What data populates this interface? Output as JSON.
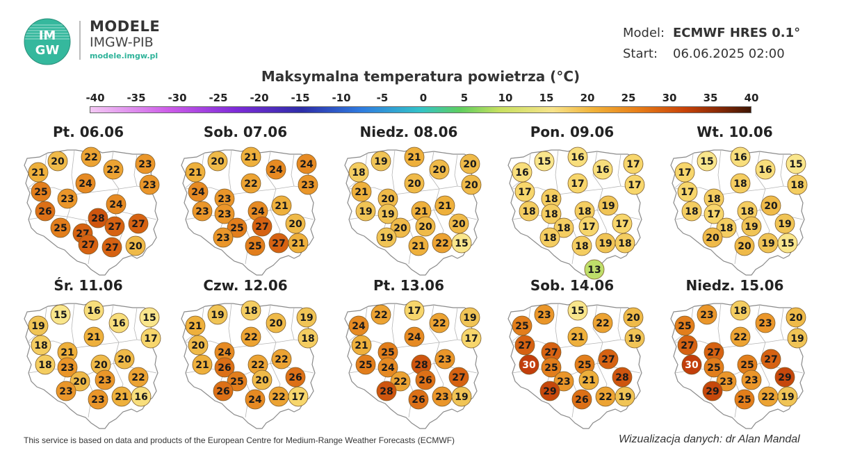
{
  "header": {
    "logo_text": "IMGW",
    "brand_name": "MODELE",
    "brand_sub": "IMGW-PIB",
    "brand_url": "modele.imgw.pl",
    "model_label": "Model:",
    "model_value": "ECMWF HRES 0.1°",
    "start_label": "Start:",
    "start_value": "06.06.2025 02:00"
  },
  "title": "Maksymalna temperatura powietrza (°C)",
  "colorbar": {
    "ticks": [
      "-40",
      "-35",
      "-30",
      "-25",
      "-20",
      "-15",
      "-10",
      "-5",
      "0",
      "5",
      "10",
      "15",
      "20",
      "25",
      "30",
      "35",
      "40"
    ]
  },
  "days": [
    {
      "label": "Pt. 06.06",
      "values": [
        21,
        20,
        22,
        22,
        23,
        23,
        25,
        23,
        24,
        26,
        28,
        24,
        25,
        27,
        27,
        27,
        27,
        27,
        20
      ]
    },
    {
      "label": "Sob. 07.06",
      "values": [
        21,
        20,
        21,
        24,
        24,
        23,
        24,
        23,
        22,
        23,
        23,
        24,
        21,
        25,
        27,
        20,
        23,
        25,
        27,
        21
      ]
    },
    {
      "label": "Niedz. 08.06",
      "values": [
        18,
        19,
        21,
        20,
        20,
        20,
        21,
        20,
        20,
        19,
        19,
        21,
        21,
        20,
        20,
        20,
        19,
        21,
        22,
        15
      ]
    },
    {
      "label": "Pon. 09.06",
      "values": [
        16,
        15,
        16,
        16,
        17,
        17,
        17,
        18,
        17,
        18,
        18,
        18,
        19,
        18,
        17,
        17,
        18,
        18,
        19,
        18,
        13
      ]
    },
    {
      "label": "Wt. 10.06",
      "values": [
        17,
        15,
        16,
        16,
        15,
        18,
        17,
        18,
        18,
        18,
        17,
        18,
        20,
        18,
        19,
        19,
        20,
        20,
        19,
        15
      ]
    },
    {
      "label": "Śr. 11.06",
      "values": [
        19,
        15,
        16,
        16,
        15,
        17,
        18,
        21,
        21,
        18,
        23,
        20,
        20,
        20,
        23,
        22,
        23,
        23,
        21,
        16
      ]
    },
    {
      "label": "Czw. 12.06",
      "values": [
        21,
        19,
        18,
        20,
        19,
        18,
        20,
        24,
        22,
        21,
        26,
        22,
        22,
        25,
        20,
        26,
        26,
        24,
        22,
        17
      ]
    },
    {
      "label": "Pt. 13.06",
      "values": [
        24,
        22,
        17,
        22,
        19,
        17,
        21,
        25,
        24,
        25,
        24,
        28,
        23,
        22,
        26,
        27,
        28,
        26,
        23,
        19
      ]
    },
    {
      "label": "Sob. 14.06",
      "values": [
        25,
        23,
        15,
        22,
        20,
        19,
        27,
        27,
        21,
        30,
        25,
        25,
        27,
        23,
        21,
        28,
        29,
        26,
        22,
        19
      ]
    },
    {
      "label": "Niedz. 15.06",
      "values": [
        25,
        23,
        18,
        23,
        20,
        19,
        27,
        27,
        22,
        30,
        25,
        25,
        27,
        23,
        23,
        29,
        29,
        25,
        22,
        19
      ]
    }
  ],
  "footer": {
    "left": "This service is based on data and products of the European Centre for Medium-Range Weather Forecasts (ECMWF)",
    "right": "Wizualizacja danych: dr Alan Mandal"
  }
}
